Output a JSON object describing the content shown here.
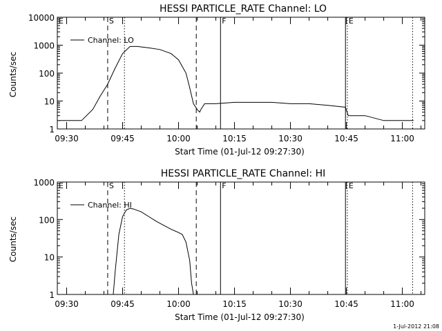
{
  "chart_data": [
    {
      "type": "line",
      "title": "HESSI PARTICLE_RATE Channel: LO",
      "xlabel": "Start Time (01-Jul-12 09:27:30)",
      "ylabel": "Counts/sec",
      "x_ticks": [
        "09:30",
        "09:45",
        "10:00",
        "10:15",
        "10:30",
        "10:45",
        "11:00"
      ],
      "y_ticks": [
        "1",
        "10",
        "100",
        "1000",
        "10000"
      ],
      "y_scale": "log",
      "ylim": [
        1,
        10000
      ],
      "legend": "Channel: LO",
      "legend_position": "top-left",
      "markers": [
        {
          "label": "E",
          "time": "09:27:30",
          "style": "none"
        },
        {
          "label": "S",
          "time": "09:41:00",
          "style": "dashed"
        },
        {
          "label": "",
          "time": "09:45:30",
          "style": "dotted"
        },
        {
          "label": "",
          "time": "10:04:45",
          "style": "dashed"
        },
        {
          "label": "F",
          "time": "10:11:15",
          "style": "solid"
        },
        {
          "label": "",
          "time": "10:44:45",
          "style": "solid"
        },
        {
          "label": "E",
          "time": "10:45:15",
          "style": "dotted"
        },
        {
          "label": "",
          "time": "11:02:45",
          "style": "dotted"
        }
      ],
      "series": [
        {
          "name": "Channel: LO",
          "x": [
            "09:28:00",
            "09:31:00",
            "09:34:00",
            "09:37:00",
            "09:39:00",
            "09:41:00",
            "09:43:00",
            "09:45:00",
            "09:47:00",
            "09:49:00",
            "09:52:00",
            "09:55:00",
            "09:58:00",
            "10:00:00",
            "10:02:00",
            "10:03:00",
            "10:04:00",
            "10:05:00",
            "10:05:40",
            "10:06:00",
            "10:07:00",
            "10:10:00",
            "10:15:00",
            "10:20:00",
            "10:25:00",
            "10:30:00",
            "10:35:00",
            "10:40:00",
            "10:44:45",
            "10:45:30",
            "10:50:00",
            "10:55:00",
            "11:00:00",
            "11:03:00"
          ],
          "y": [
            2,
            2,
            2,
            5,
            15,
            40,
            150,
            500,
            900,
            900,
            800,
            700,
            500,
            300,
            100,
            30,
            8,
            5,
            4,
            5,
            8,
            8,
            9,
            9,
            9,
            8,
            8,
            7,
            6,
            3,
            3,
            2,
            2,
            2
          ]
        }
      ]
    },
    {
      "type": "line",
      "title": "HESSI PARTICLE_RATE Channel: HI",
      "xlabel": "Start Time (01-Jul-12 09:27:30)",
      "ylabel": "Counts/sec",
      "x_ticks": [
        "09:30",
        "09:45",
        "10:00",
        "10:15",
        "10:30",
        "10:45",
        "11:00"
      ],
      "y_ticks": [
        "1",
        "10",
        "100",
        "1000"
      ],
      "y_scale": "log",
      "ylim": [
        1,
        1000
      ],
      "legend": "Channel: HI",
      "legend_position": "top-left",
      "markers": [
        {
          "label": "E",
          "time": "09:27:30",
          "style": "none"
        },
        {
          "label": "S",
          "time": "09:41:00",
          "style": "dashed"
        },
        {
          "label": "",
          "time": "09:45:30",
          "style": "dotted"
        },
        {
          "label": "",
          "time": "10:04:45",
          "style": "dashed"
        },
        {
          "label": "F",
          "time": "10:11:15",
          "style": "solid"
        },
        {
          "label": "",
          "time": "10:44:45",
          "style": "solid"
        },
        {
          "label": "E",
          "time": "10:45:15",
          "style": "dotted"
        },
        {
          "label": "",
          "time": "11:02:45",
          "style": "dotted"
        }
      ],
      "series": [
        {
          "name": "Channel: HI",
          "x": [
            "09:42:30",
            "09:43:00",
            "09:44:00",
            "09:45:00",
            "09:46:00",
            "09:47:00",
            "09:48:00",
            "09:50:00",
            "09:52:00",
            "09:54:00",
            "09:56:00",
            "09:58:00",
            "10:00:00",
            "10:01:00",
            "10:02:00",
            "10:03:00",
            "10:03:30",
            "10:04:00"
          ],
          "y": [
            1,
            4,
            40,
            120,
            180,
            200,
            190,
            160,
            120,
            90,
            70,
            55,
            45,
            40,
            25,
            8,
            2,
            1
          ]
        }
      ]
    }
  ],
  "timestamp": "1-Jul-2012 21:08"
}
